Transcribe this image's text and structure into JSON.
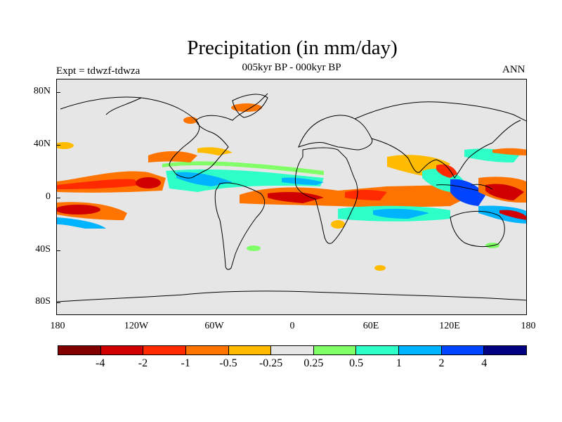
{
  "title": "Precipitation (in mm/day)",
  "subtitle_center": "005kyr BP - 000kyr BP",
  "subtitle_left": "Expt = tdwzf-tdwza",
  "subtitle_right": "ANN",
  "y_axis_labels": [
    "80N",
    "40N",
    "0",
    "40S",
    "80S"
  ],
  "x_axis_labels": [
    "180",
    "120W",
    "60W",
    "0",
    "60E",
    "120E",
    "180"
  ],
  "colorbar": {
    "colors": [
      "#800000",
      "#d00000",
      "#ff2a00",
      "#ff7400",
      "#ffbb00",
      "#e6e6e6",
      "#80ff66",
      "#2effc8",
      "#00b4ff",
      "#0044ff",
      "#000080"
    ],
    "labels": [
      "-4",
      "-2",
      "-1",
      "-0.5",
      "-0.25",
      "0.25",
      "0.5",
      "1",
      "2",
      "4"
    ]
  },
  "colors": {
    "background": "#ffffff",
    "ocean_land_fill": "#e6e6e6",
    "coastline": "#000000"
  }
}
